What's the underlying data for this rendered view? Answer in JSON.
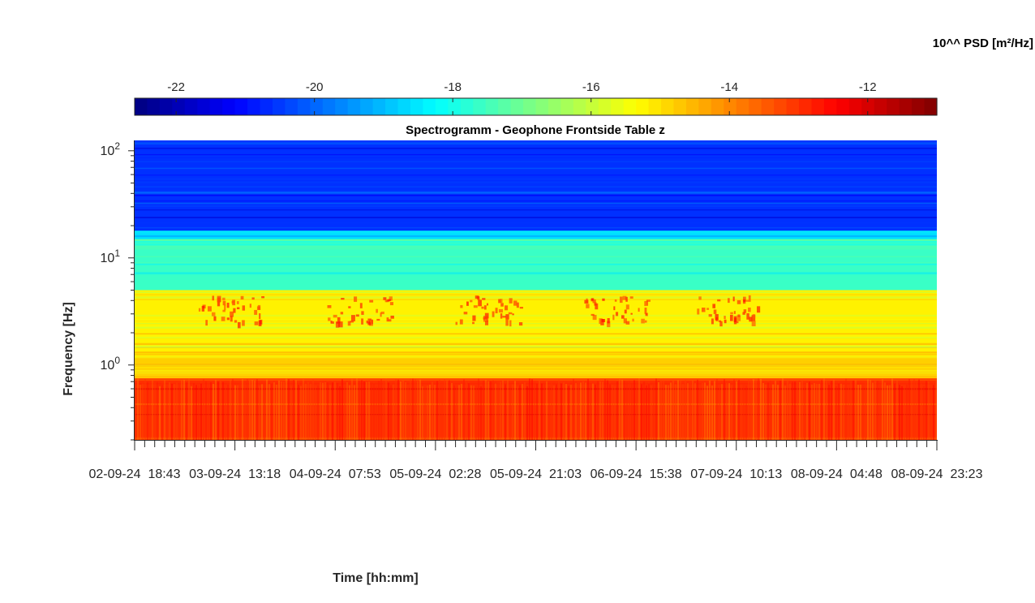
{
  "figure": {
    "colorbar_label": "10^^ PSD [m²/Hz]",
    "title": "Spectrogramm - Geophone Frontside Table z",
    "ylabel": "Frequency [Hz]",
    "xlabel": "Time [hh:mm]"
  },
  "chart_data": {
    "type": "heatmap",
    "title": "Spectrogramm - Geophone Frontside Table z",
    "xlabel": "Time [hh:mm]",
    "ylabel": "Frequency [Hz]",
    "yscale": "log",
    "ylim": [
      0.2,
      125
    ],
    "y_ticks": [
      {
        "value": 1,
        "base": "10",
        "exp": "0"
      },
      {
        "value": 10,
        "base": "10",
        "exp": "1"
      },
      {
        "value": 100,
        "base": "10",
        "exp": "2"
      }
    ],
    "x_tick_labels": [
      "02-09-24  18:43",
      "03-09-24  13:18",
      "04-09-24  07:53",
      "05-09-24  02:28",
      "05-09-24  21:03",
      "06-09-24  15:38",
      "07-09-24  10:13",
      "08-09-24  04:48",
      "08-09-24  23:23"
    ],
    "colorbar": {
      "label": "10^^ PSD [m²/Hz]",
      "colormap": "jet",
      "range": [
        -22.6,
        -11
      ],
      "ticks": [
        "-22",
        "-20",
        "-18",
        "-16",
        "-14",
        "-12"
      ],
      "tick_values": [
        -22,
        -20,
        -18,
        -16,
        -14,
        -12
      ]
    },
    "frequency_bands": [
      {
        "f_min": 18,
        "f_max": 125,
        "log_psd": -20.6
      },
      {
        "f_min": 15,
        "f_max": 18,
        "log_psd": -18.6
      },
      {
        "f_min": 5,
        "f_max": 15,
        "log_psd": -17.6
      },
      {
        "f_min": 1.2,
        "f_max": 5,
        "log_psd": -15.2
      },
      {
        "f_min": 0.75,
        "f_max": 1.2,
        "log_psd": -14.8
      },
      {
        "f_min": 0.2,
        "f_max": 0.75,
        "log_psd": -13.0
      }
    ],
    "daily_activity_band_hz": [
      2.5,
      4.5
    ],
    "daily_activity_log_psd": -13.0
  }
}
